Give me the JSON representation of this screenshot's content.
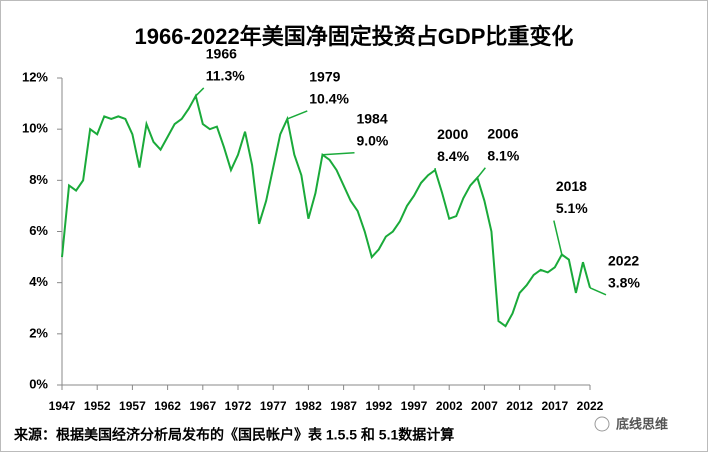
{
  "chart_data": {
    "type": "line",
    "title": "1966-2022年美国净固定投资占GDP比重变化",
    "source": "来源：根据美国经济分析局发布的《国民帐户》表 1.5.5 和 5.1数据计算",
    "watermark": "底线思维",
    "x": [
      1947,
      1948,
      1949,
      1950,
      1951,
      1952,
      1953,
      1954,
      1955,
      1956,
      1957,
      1958,
      1959,
      1960,
      1961,
      1962,
      1963,
      1964,
      1965,
      1966,
      1967,
      1968,
      1969,
      1970,
      1971,
      1972,
      1973,
      1974,
      1975,
      1976,
      1977,
      1978,
      1979,
      1980,
      1981,
      1982,
      1983,
      1984,
      1985,
      1986,
      1987,
      1988,
      1989,
      1990,
      1991,
      1992,
      1993,
      1994,
      1995,
      1996,
      1997,
      1998,
      1999,
      2000,
      2001,
      2002,
      2003,
      2004,
      2005,
      2006,
      2007,
      2008,
      2009,
      2010,
      2011,
      2012,
      2013,
      2014,
      2015,
      2016,
      2017,
      2018,
      2019,
      2020,
      2021,
      2022
    ],
    "series": [
      {
        "name": "净固定投资占GDP比重",
        "color": "#1aaa3a",
        "values": [
          5.0,
          7.8,
          7.6,
          8.0,
          10.0,
          9.8,
          10.5,
          10.4,
          10.5,
          10.4,
          9.8,
          8.5,
          10.2,
          9.5,
          9.2,
          9.7,
          10.2,
          10.4,
          10.8,
          11.3,
          10.2,
          10.0,
          10.1,
          9.3,
          8.4,
          9.0,
          9.9,
          8.6,
          6.3,
          7.2,
          8.5,
          9.8,
          10.4,
          9.0,
          8.2,
          6.5,
          7.5,
          9.0,
          8.8,
          8.4,
          7.8,
          7.2,
          6.8,
          6.0,
          5.0,
          5.3,
          5.8,
          6.0,
          6.4,
          7.0,
          7.4,
          7.9,
          8.2,
          8.4,
          7.5,
          6.5,
          6.6,
          7.3,
          7.8,
          8.1,
          7.2,
          6.0,
          2.5,
          2.3,
          2.8,
          3.6,
          3.9,
          4.3,
          4.5,
          4.4,
          4.6,
          5.1,
          4.9,
          3.6,
          4.8,
          3.8
        ]
      }
    ],
    "xlim": [
      1947,
      2022
    ],
    "xticks": [
      1947,
      1952,
      1957,
      1962,
      1967,
      1972,
      1977,
      1982,
      1987,
      1992,
      1997,
      2002,
      2007,
      2012,
      2017,
      2022
    ],
    "ylim": [
      0,
      12
    ],
    "yticks": [
      {
        "value": 0,
        "label": "0%"
      },
      {
        "value": 2,
        "label": "2%"
      },
      {
        "value": 4,
        "label": "4%"
      },
      {
        "value": 6,
        "label": "6%"
      },
      {
        "value": 8,
        "label": "8%"
      },
      {
        "value": 10,
        "label": "10%"
      },
      {
        "value": 12,
        "label": "12%"
      }
    ],
    "annotations": [
      {
        "x": 1966,
        "y": 11.3,
        "label": "11.3%"
      },
      {
        "x": 1979,
        "y": 10.4,
        "label": "10.4%"
      },
      {
        "x": 1984,
        "y": 9.0,
        "label": "9.0%"
      },
      {
        "x": 2000,
        "y": 8.4,
        "label": "8.4%"
      },
      {
        "x": 2006,
        "y": 8.1,
        "label": "8.1%"
      },
      {
        "x": 2018,
        "y": 5.1,
        "label": "5.1%"
      },
      {
        "x": 2022,
        "y": 3.8,
        "label": "3.8%"
      }
    ]
  }
}
